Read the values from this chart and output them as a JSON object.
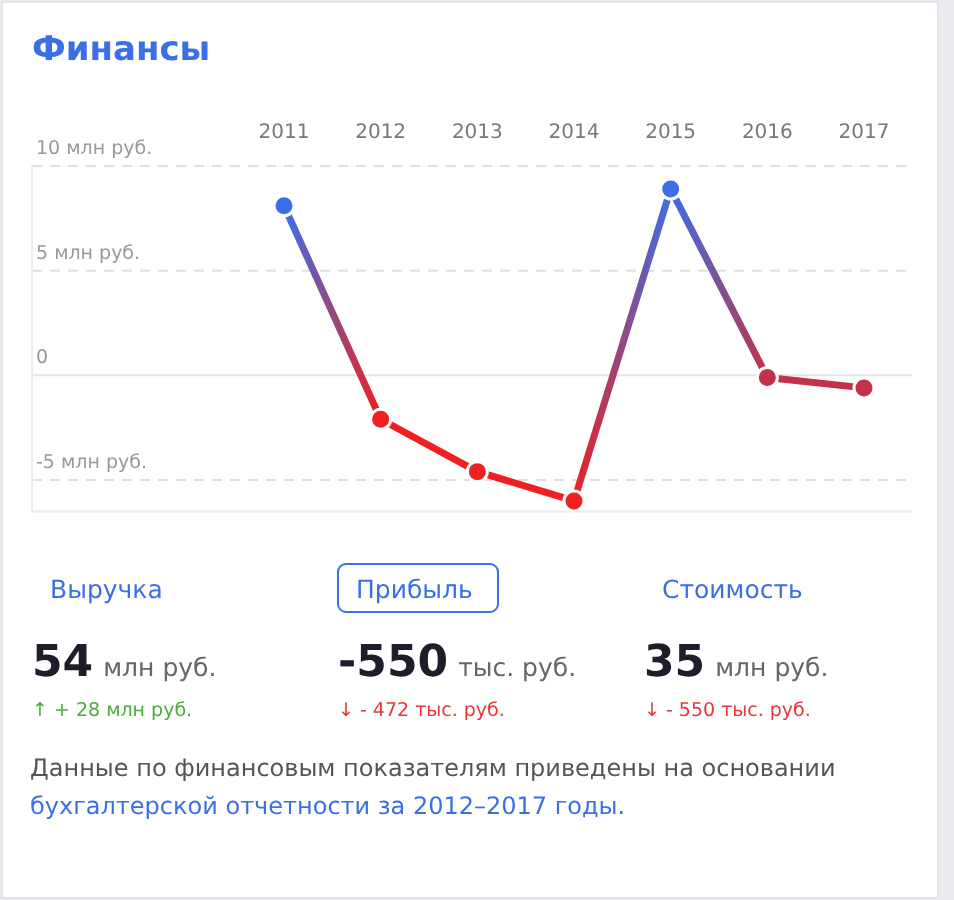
{
  "chart_data": [
    {
      "type": "line",
      "title": "Финансы",
      "categories": [
        "2011",
        "2012",
        "2013",
        "2014",
        "2015",
        "2016",
        "2017"
      ],
      "series": [
        {
          "values": [
            8.1,
            -2.1,
            -4.6,
            -6.0,
            8.9,
            -0.1,
            -0.6
          ],
          "colors": [
            "#3b6fe6",
            "#ee2020",
            "#ee2020",
            "#ee2020",
            "#3b6fe6",
            "#c3324a",
            "#c3324a"
          ]
        }
      ],
      "ylim": [
        -6.5,
        10
      ],
      "yticks": [
        {
          "value": -5,
          "label": "-5 млн руб."
        },
        {
          "value": 0,
          "label": "0"
        },
        {
          "value": 5,
          "label": "5 млн руб."
        },
        {
          "value": 10,
          "label": "10 млн руб."
        }
      ],
      "grid": "y",
      "marker": "circle",
      "line_style": "solid"
    },
    {
      "type": "other",
      "categories": [
        "Выручка",
        "Прибыль",
        "Стоимость"
      ],
      "value_labels": [
        "54",
        "-550",
        "35"
      ],
      "colors": [
        "#4caf3a",
        "#e53935",
        "#e53935"
      ],
      "annotations": [
        "млн руб.",
        "тыс. руб.",
        "млн руб.",
        "↑ + 28 млн руб.",
        "↓ - 472 тыс. руб.",
        "↓ - 550 тыс. руб.",
        "Данные по финансовым показателям приведены на основании",
        "бухгалтерской отчетности за 2012–2017 годы."
      ]
    }
  ]
}
